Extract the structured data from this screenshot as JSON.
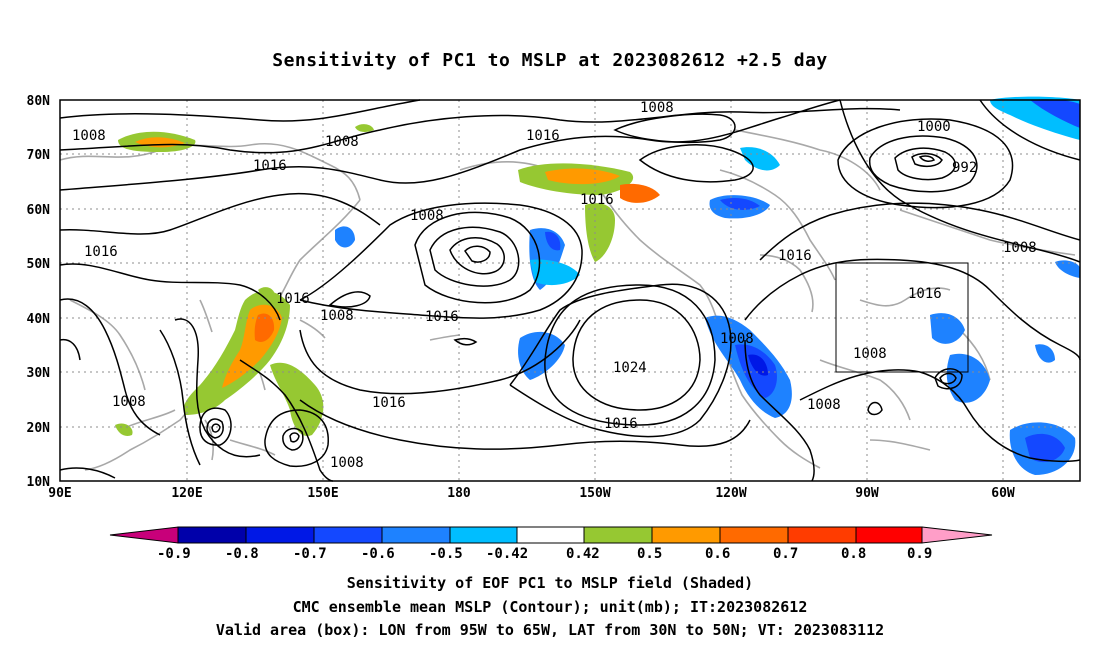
{
  "title": "Sensitivity of PC1 to MSLP at 2023082612 +2.5 day",
  "lat_labels": [
    "80N",
    "70N",
    "60N",
    "50N",
    "40N",
    "30N",
    "20N",
    "10N"
  ],
  "lon_labels": [
    "90E",
    "120E",
    "150E",
    "180",
    "150W",
    "120W",
    "90W",
    "60W"
  ],
  "contour_labels": [
    "1008",
    "1016",
    "1008",
    "1008",
    "1000",
    "992",
    "1016",
    "1008",
    "1016",
    "1016",
    "1016",
    "1008",
    "1016",
    "1008",
    "1024",
    "1008",
    "1008",
    "1016",
    "1016",
    "1008",
    "1008",
    "1016",
    "1008"
  ],
  "colorbar": {
    "labels": [
      "-0.9",
      "-0.8",
      "-0.7",
      "-0.6",
      "-0.5",
      "-0.42",
      "0.42",
      "0.5",
      "0.6",
      "0.7",
      "0.8",
      "0.9"
    ],
    "colors": [
      "#c8007a",
      "#0000aa",
      "#0018e6",
      "#1448ff",
      "#1e82ff",
      "#00beff",
      "#ffffff",
      "#96c832",
      "#ff9a00",
      "#ff6a00",
      "#ff3c00",
      "#ff0000",
      "#ff9ec8"
    ]
  },
  "captions": [
    "Sensitivity of EOF PC1 to MSLP field (Shaded)",
    "CMC ensemble mean MSLP (Contour); unit(mb); IT:2023082612",
    "Valid area (box): LON from 95W to 65W, LAT from 30N to 50N; VT: 2023083112"
  ]
}
